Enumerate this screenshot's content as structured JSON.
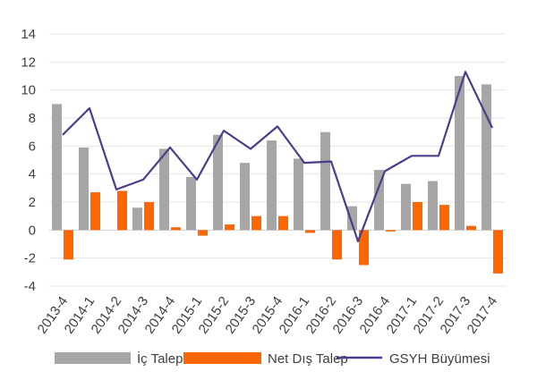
{
  "chart_data": {
    "type": "bar",
    "title": "",
    "xlabel": "",
    "ylabel": "",
    "ylim": [
      -4,
      14
    ],
    "yticks": [
      -4,
      -2,
      0,
      2,
      4,
      6,
      8,
      10,
      12,
      14
    ],
    "grid": true,
    "legend_position": "bottom",
    "categories": [
      "2013-4",
      "2014-1",
      "2014-2",
      "2014-3",
      "2014-4",
      "2015-1",
      "2015-2",
      "2015-3",
      "2015-4",
      "2016-1",
      "2016-2",
      "2016-3",
      "2016-4",
      "2017-1",
      "2017-2",
      "2017-3",
      "2017-4"
    ],
    "series": [
      {
        "name": "İç Talep",
        "type": "bar",
        "color": "#a6a6a6",
        "values": [
          9.0,
          5.9,
          0.0,
          1.6,
          5.8,
          3.8,
          6.8,
          4.8,
          6.4,
          5.1,
          7.0,
          1.7,
          4.3,
          3.3,
          3.5,
          11.0,
          10.4
        ]
      },
      {
        "name": "Net Dış Talep",
        "type": "bar",
        "color": "#ff6600",
        "values": [
          -2.1,
          2.7,
          2.8,
          2.0,
          0.2,
          -0.4,
          0.4,
          1.0,
          1.0,
          -0.2,
          -2.1,
          -2.5,
          -0.1,
          2.0,
          1.8,
          0.3,
          -3.1
        ]
      },
      {
        "name": "GSYH Büyümesi",
        "type": "line",
        "color": "#4b3c8c",
        "values": [
          6.8,
          8.7,
          2.9,
          3.6,
          5.9,
          3.6,
          7.1,
          5.8,
          7.4,
          4.8,
          4.9,
          -0.8,
          4.2,
          5.3,
          5.3,
          11.3,
          7.3
        ]
      }
    ]
  }
}
